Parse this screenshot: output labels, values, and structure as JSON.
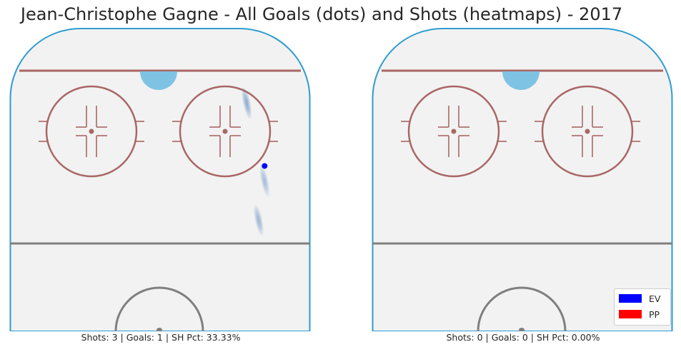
{
  "title": "Jean-Christophe Gagne - All Goals (dots) and Shots (heatmaps) - 2017",
  "colors": {
    "ice": "#f2f2f2",
    "boards": "#2d9cd1",
    "goal_line": "#a96766",
    "faceoff": "#a96766",
    "blue_line": "#7f7f7f",
    "crease": "#7ec3e3",
    "heatmap": "#2b6cb0",
    "ev": "#0000ff",
    "pp": "#ff0000"
  },
  "legend": [
    {
      "label": "EV",
      "color": "#0000ff"
    },
    {
      "label": "PP",
      "color": "#ff0000"
    }
  ],
  "chart_data": [
    {
      "type": "scatter",
      "caption": "Shots: 3 | Goals: 1 | SH Pct: 33.33%",
      "stats": {
        "shots": 3,
        "goals": 1,
        "sh_pct": 33.33
      },
      "goals": [
        {
          "x": 85,
          "y": 55,
          "strength": "EV"
        }
      ],
      "shot_heatmap": [
        {
          "x": 79,
          "y": 76,
          "intensity": 0.7
        },
        {
          "x": 85,
          "y": 50,
          "intensity": 0.4
        },
        {
          "x": 83,
          "y": 37,
          "intensity": 0.55
        }
      ]
    },
    {
      "type": "scatter",
      "caption": "Shots: 0 | Goals: 0 | SH Pct: 0.00%",
      "stats": {
        "shots": 0,
        "goals": 0,
        "sh_pct": 0.0
      },
      "goals": [],
      "shot_heatmap": []
    }
  ]
}
